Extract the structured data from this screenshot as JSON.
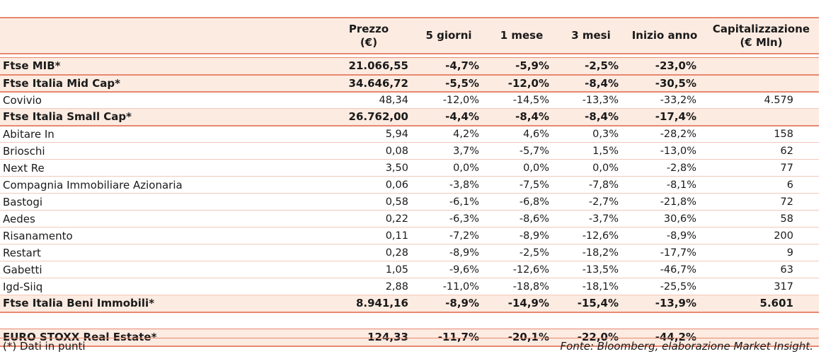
{
  "headers": {
    "name": "",
    "price": [
      "Prezzo",
      "(€)"
    ],
    "d5": "5 giorni",
    "m1": "1 mese",
    "m3": "3 mesi",
    "ytd": "Inizio anno",
    "cap": [
      "Capitalizzazione",
      "(€ Mln)"
    ]
  },
  "rows": [
    {
      "type": "index",
      "name": "Ftse MIB*",
      "price": "21.066,55",
      "d5": "-4,7%",
      "m1": "-5,9%",
      "m3": "-2,5%",
      "ytd": "-23,0%",
      "cap": ""
    },
    {
      "type": "index",
      "name": "Ftse Italia Mid Cap*",
      "price": "34.646,72",
      "d5": "-5,5%",
      "m1": "-12,0%",
      "m3": "-8,4%",
      "ytd": "-30,5%",
      "cap": ""
    },
    {
      "type": "stock",
      "name": "Covivio",
      "price": "48,34",
      "d5": "-12,0%",
      "m1": "-14,5%",
      "m3": "-13,3%",
      "ytd": "-33,2%",
      "cap": "4.579"
    },
    {
      "type": "index",
      "name": "Ftse Italia Small Cap*",
      "price": "26.762,00",
      "d5": "-4,4%",
      "m1": "-8,4%",
      "m3": "-8,4%",
      "ytd": "-17,4%",
      "cap": ""
    },
    {
      "type": "stock",
      "name": "Abitare In",
      "price": "5,94",
      "d5": "4,2%",
      "m1": "4,6%",
      "m3": "0,3%",
      "ytd": "-28,2%",
      "cap": "158"
    },
    {
      "type": "stock",
      "name": "Brioschi",
      "price": "0,08",
      "d5": "3,7%",
      "m1": "-5,7%",
      "m3": "1,5%",
      "ytd": "-13,0%",
      "cap": "62"
    },
    {
      "type": "stock",
      "name": "Next Re",
      "price": "3,50",
      "d5": "0,0%",
      "m1": "0,0%",
      "m3": "0,0%",
      "ytd": "-2,8%",
      "cap": "77"
    },
    {
      "type": "stock",
      "name": "Compagnia Immobiliare Azionaria",
      "price": "0,06",
      "d5": "-3,8%",
      "m1": "-7,5%",
      "m3": "-7,8%",
      "ytd": "-8,1%",
      "cap": "6"
    },
    {
      "type": "stock",
      "name": "Bastogi",
      "price": "0,58",
      "d5": "-6,1%",
      "m1": "-6,8%",
      "m3": "-2,7%",
      "ytd": "-21,8%",
      "cap": "72"
    },
    {
      "type": "stock",
      "name": "Aedes",
      "price": "0,22",
      "d5": "-6,3%",
      "m1": "-8,6%",
      "m3": "-3,7%",
      "ytd": "30,6%",
      "cap": "58"
    },
    {
      "type": "stock",
      "name": "Risanamento",
      "price": "0,11",
      "d5": "-7,2%",
      "m1": "-8,9%",
      "m3": "-12,6%",
      "ytd": "-8,9%",
      "cap": "200"
    },
    {
      "type": "stock",
      "name": "Restart",
      "price": "0,28",
      "d5": "-8,9%",
      "m1": "-2,5%",
      "m3": "-18,2%",
      "ytd": "-17,7%",
      "cap": "9"
    },
    {
      "type": "stock",
      "name": "Gabetti",
      "price": "1,05",
      "d5": "-9,6%",
      "m1": "-12,6%",
      "m3": "-13,5%",
      "ytd": "-46,7%",
      "cap": "63"
    },
    {
      "type": "stock",
      "name": "Igd-Siiq",
      "price": "2,88",
      "d5": "-11,0%",
      "m1": "-18,8%",
      "m3": "-18,1%",
      "ytd": "-25,5%",
      "cap": "317"
    },
    {
      "type": "index",
      "name": "Ftse Italia Beni Immobili*",
      "price": "8.941,16",
      "d5": "-8,9%",
      "m1": "-14,9%",
      "m3": "-15,4%",
      "ytd": "-13,9%",
      "cap": "5.601"
    },
    {
      "type": "spacer"
    },
    {
      "type": "index",
      "name": "EURO STOXX Real Estate*",
      "price": "124,33",
      "d5": "-11,7%",
      "m1": "-20,1%",
      "m3": "-22,0%",
      "ytd": "-44,2%",
      "cap": ""
    }
  ],
  "footer": {
    "note": "(*) Dati in punti",
    "source": "Fonte: Bloomberg, elaborazione Market Insight."
  }
}
